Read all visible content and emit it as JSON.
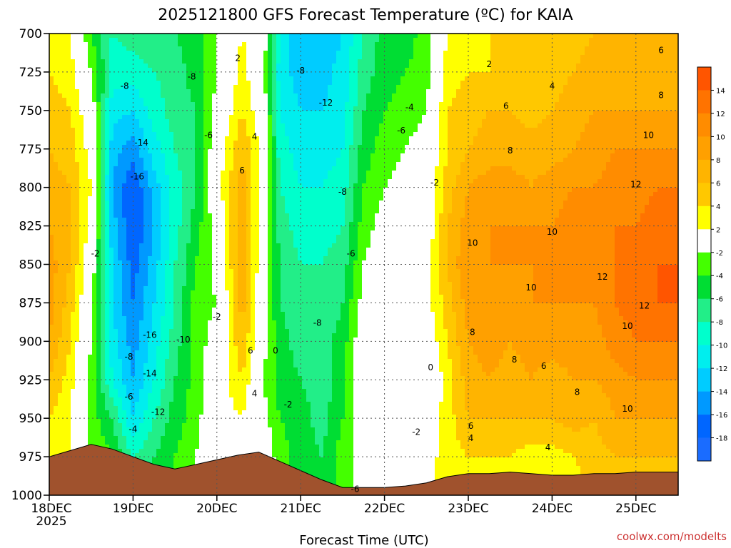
{
  "chart_data": {
    "type": "heatmap",
    "title": "2025121800 GFS Forecast Temperature (ºC) for KAIA",
    "xlabel": "Forecast Time (UTC)",
    "credit": "coolwx.com/modelts",
    "x_ticks": [
      "18DEC",
      "19DEC",
      "20DEC",
      "21DEC",
      "22DEC",
      "23DEC",
      "24DEC",
      "25DEC"
    ],
    "x_year_label": "2025",
    "y_ticks": [
      700,
      725,
      750,
      775,
      800,
      825,
      850,
      875,
      900,
      925,
      950,
      975,
      1000
    ],
    "ylim": [
      1000,
      700
    ],
    "y_unit": "hPa",
    "xlim_days": [
      0,
      7.65
    ],
    "colorbar": {
      "labels": [
        14,
        12,
        10,
        8,
        6,
        4,
        2,
        -2,
        -4,
        -6,
        -8,
        -10,
        -12,
        -14,
        -16,
        -18
      ],
      "colors": [
        "#ff5500",
        "#ff7300",
        "#ff8c00",
        "#ffa000",
        "#ffb400",
        "#ffc800",
        "#ffff00",
        "#ffffff",
        "#44ff00",
        "#00dd33",
        "#22ee88",
        "#00ffcc",
        "#00eeee",
        "#00ccff",
        "#0099ff",
        "#0066ff",
        "#1a6cff"
      ]
    },
    "grid": true,
    "temperature_columns": [
      {
        "day": 0.0,
        "t": [
          3,
          4,
          5,
          6,
          7,
          8,
          9,
          9,
          8,
          6,
          4,
          3,
          2
        ]
      },
      {
        "day": 0.25,
        "t": [
          2,
          3,
          4,
          5,
          6,
          6,
          6,
          5,
          4,
          3,
          2,
          2,
          1
        ]
      },
      {
        "day": 0.5,
        "t": [
          -4,
          -2,
          0,
          1,
          2,
          1,
          0,
          -1,
          -2,
          -3,
          -3,
          -2,
          -1
        ]
      },
      {
        "day": 0.75,
        "t": [
          -8,
          -9,
          -11,
          -13,
          -14,
          -13,
          -12,
          -12,
          -11,
          -10,
          -6,
          -4,
          -3
        ]
      },
      {
        "day": 1.0,
        "t": [
          -7,
          -9,
          -12,
          -15,
          -18,
          -18,
          -17,
          -16,
          -15,
          -14,
          -12,
          -8,
          -6
        ]
      },
      {
        "day": 1.25,
        "t": [
          -6,
          -8,
          -9,
          -11,
          -13,
          -14,
          -13,
          -12,
          -11,
          -10,
          -8,
          -6,
          -4
        ]
      },
      {
        "day": 1.5,
        "t": [
          -6,
          -7,
          -7,
          -8,
          -9,
          -9,
          -8,
          -8,
          -7,
          -6,
          -5,
          -4,
          -3
        ]
      },
      {
        "day": 1.75,
        "t": [
          -5,
          -5,
          -6,
          -6,
          -6,
          -5,
          -4,
          -3,
          -3,
          -3,
          -3,
          -2,
          -2
        ]
      },
      {
        "day": 2.0,
        "t": [
          -2,
          -2,
          -1,
          0,
          1,
          -1,
          -1,
          -2,
          -1,
          0,
          1,
          1,
          1
        ]
      },
      {
        "day": 2.3,
        "t": [
          2,
          3,
          4,
          6,
          7,
          8,
          8,
          7,
          6,
          4,
          2,
          1,
          1
        ]
      },
      {
        "day": 2.55,
        "t": [
          0,
          -1,
          0,
          1,
          1,
          0,
          0,
          -1,
          -1,
          -2,
          -1,
          0,
          0
        ]
      },
      {
        "day": 2.75,
        "t": [
          -10,
          -11,
          -10,
          -9,
          -8,
          -7,
          -6,
          -6,
          -5,
          -5,
          -4,
          -3,
          -3
        ]
      },
      {
        "day": 3.0,
        "t": [
          -14,
          -13,
          -12,
          -11,
          -10,
          -9,
          -8,
          -8,
          -7,
          -6,
          -5,
          -5,
          -6
        ]
      },
      {
        "day": 3.25,
        "t": [
          -14,
          -13,
          -12,
          -11,
          -10,
          -9,
          -8,
          -8,
          -7,
          -7,
          -7,
          -6,
          -6
        ]
      },
      {
        "day": 3.5,
        "t": [
          -12,
          -11,
          -11,
          -10,
          -9,
          -8,
          -7,
          -6,
          -5,
          -5,
          -4,
          -3,
          -3
        ]
      },
      {
        "day": 3.75,
        "t": [
          -8,
          -7,
          -6,
          -5,
          -4,
          -3,
          -2,
          -1,
          0,
          1,
          0,
          -1,
          -1
        ]
      },
      {
        "day": 4.0,
        "t": [
          -5,
          -5,
          -4,
          -3,
          -2,
          -1,
          0,
          1,
          1,
          1,
          0,
          -1,
          -1
        ]
      },
      {
        "day": 4.25,
        "t": [
          -5,
          -4,
          -3,
          -2,
          -1,
          0,
          0,
          1,
          0,
          0,
          -1,
          -1,
          -1
        ]
      },
      {
        "day": 4.5,
        "t": [
          -3,
          -3,
          -2,
          -1,
          0,
          0,
          1,
          1,
          0,
          -1,
          0,
          1,
          1
        ]
      },
      {
        "day": 4.75,
        "t": [
          2,
          3,
          4,
          4,
          5,
          6,
          6,
          5,
          4,
          3,
          3,
          3,
          3
        ]
      },
      {
        "day": 5.0,
        "t": [
          3,
          4,
          5,
          6,
          8,
          9,
          10,
          9,
          8,
          7,
          6,
          4,
          3
        ]
      },
      {
        "day": 5.25,
        "t": [
          4,
          4,
          6,
          7,
          9,
          10,
          10,
          10,
          9,
          8,
          6,
          4,
          3
        ]
      },
      {
        "day": 5.5,
        "t": [
          4,
          5,
          6,
          7,
          9,
          10,
          10,
          9,
          8,
          7,
          6,
          4,
          3
        ]
      },
      {
        "day": 5.75,
        "t": [
          4,
          4,
          5,
          7,
          8,
          10,
          10,
          10,
          9,
          8,
          6,
          3,
          3
        ]
      },
      {
        "day": 6.0,
        "t": [
          5,
          5,
          6,
          7,
          9,
          10,
          10,
          10,
          9,
          7,
          6,
          3,
          3
        ]
      },
      {
        "day": 6.25,
        "t": [
          5,
          6,
          7,
          8,
          10,
          11,
          11,
          10,
          9,
          8,
          7,
          4,
          3
        ]
      },
      {
        "day": 6.5,
        "t": [
          6,
          7,
          8,
          9,
          10,
          11,
          11,
          10,
          9,
          8,
          6,
          5,
          4
        ]
      },
      {
        "day": 6.75,
        "t": [
          6,
          7,
          8,
          10,
          11,
          12,
          12,
          12,
          11,
          9,
          8,
          6,
          4
        ]
      },
      {
        "day": 7.0,
        "t": [
          6,
          7,
          8,
          10,
          11,
          12,
          13,
          13,
          12,
          10,
          8,
          6,
          4
        ]
      },
      {
        "day": 7.25,
        "t": [
          6,
          7,
          8,
          10,
          12,
          13,
          14,
          14,
          12,
          10,
          8,
          6,
          5
        ]
      },
      {
        "day": 7.5,
        "t": [
          6,
          7,
          8,
          10,
          12,
          13,
          14,
          14,
          12,
          10,
          8,
          6,
          5
        ]
      },
      {
        "day": 7.65,
        "t": [
          6,
          7,
          8,
          10,
          12,
          13,
          14,
          14,
          12,
          10,
          8,
          6,
          5
        ]
      }
    ],
    "surface_pressure": [
      {
        "day": 0.0,
        "p": 975
      },
      {
        "day": 0.25,
        "p": 971
      },
      {
        "day": 0.5,
        "p": 967
      },
      {
        "day": 0.75,
        "p": 970
      },
      {
        "day": 1.0,
        "p": 975
      },
      {
        "day": 1.25,
        "p": 980
      },
      {
        "day": 1.5,
        "p": 983
      },
      {
        "day": 1.75,
        "p": 980
      },
      {
        "day": 2.0,
        "p": 977
      },
      {
        "day": 2.25,
        "p": 974
      },
      {
        "day": 2.5,
        "p": 972
      },
      {
        "day": 2.75,
        "p": 978
      },
      {
        "day": 3.0,
        "p": 984
      },
      {
        "day": 3.25,
        "p": 990
      },
      {
        "day": 3.5,
        "p": 995
      },
      {
        "day": 3.75,
        "p": 995
      },
      {
        "day": 4.0,
        "p": 995
      },
      {
        "day": 4.25,
        "p": 994
      },
      {
        "day": 4.5,
        "p": 992
      },
      {
        "day": 4.75,
        "p": 988
      },
      {
        "day": 5.0,
        "p": 986
      },
      {
        "day": 5.25,
        "p": 986
      },
      {
        "day": 5.5,
        "p": 985
      },
      {
        "day": 5.75,
        "p": 986
      },
      {
        "day": 6.0,
        "p": 987
      },
      {
        "day": 6.25,
        "p": 987
      },
      {
        "day": 6.5,
        "p": 986
      },
      {
        "day": 6.75,
        "p": 986
      },
      {
        "day": 7.0,
        "p": 985
      },
      {
        "day": 7.25,
        "p": 985
      },
      {
        "day": 7.5,
        "p": 985
      },
      {
        "day": 7.65,
        "p": 985
      }
    ],
    "contour_labels": [
      {
        "text": "2",
        "day": 2.25,
        "p": 716
      },
      {
        "text": "-8",
        "day": 0.9,
        "p": 734
      },
      {
        "text": "-8",
        "day": 1.7,
        "p": 728
      },
      {
        "text": "-8",
        "day": 3.0,
        "p": 724
      },
      {
        "text": "-12",
        "day": 3.3,
        "p": 745
      },
      {
        "text": "-4",
        "day": 4.3,
        "p": 748
      },
      {
        "text": "-6",
        "day": 4.2,
        "p": 763
      },
      {
        "text": "2",
        "day": 5.25,
        "p": 720
      },
      {
        "text": "4",
        "day": 6.0,
        "p": 734
      },
      {
        "text": "6",
        "day": 7.3,
        "p": 711
      },
      {
        "text": "6",
        "day": 5.45,
        "p": 747
      },
      {
        "text": "8",
        "day": 7.3,
        "p": 740
      },
      {
        "text": "-14",
        "day": 1.1,
        "p": 771
      },
      {
        "text": "-6",
        "day": 1.9,
        "p": 766
      },
      {
        "text": "4",
        "day": 2.45,
        "p": 767
      },
      {
        "text": "10",
        "day": 7.15,
        "p": 766
      },
      {
        "text": "8",
        "day": 5.5,
        "p": 776
      },
      {
        "text": "-16",
        "day": 1.05,
        "p": 793
      },
      {
        "text": "6",
        "day": 2.3,
        "p": 789
      },
      {
        "text": "-2",
        "day": 4.6,
        "p": 797
      },
      {
        "text": "12",
        "day": 7.0,
        "p": 798
      },
      {
        "text": "-8",
        "day": 3.5,
        "p": 803
      },
      {
        "text": "10",
        "day": 6.0,
        "p": 829
      },
      {
        "text": "10",
        "day": 5.05,
        "p": 836
      },
      {
        "text": "-2",
        "day": 0.55,
        "p": 843
      },
      {
        "text": "-6",
        "day": 3.6,
        "p": 843
      },
      {
        "text": "10",
        "day": 5.75,
        "p": 865
      },
      {
        "text": "12",
        "day": 6.6,
        "p": 858
      },
      {
        "text": "-2",
        "day": 2.0,
        "p": 884
      },
      {
        "text": "-8",
        "day": 3.2,
        "p": 888
      },
      {
        "text": "12",
        "day": 7.1,
        "p": 877
      },
      {
        "text": "10",
        "day": 6.9,
        "p": 890
      },
      {
        "text": "8",
        "day": 5.05,
        "p": 894
      },
      {
        "text": "-16",
        "day": 1.2,
        "p": 896
      },
      {
        "text": "-10",
        "day": 1.6,
        "p": 899
      },
      {
        "text": "-8",
        "day": 0.95,
        "p": 910
      },
      {
        "text": "6",
        "day": 2.4,
        "p": 906
      },
      {
        "text": "0",
        "day": 2.7,
        "p": 906
      },
      {
        "text": "8",
        "day": 5.55,
        "p": 912
      },
      {
        "text": "6",
        "day": 5.9,
        "p": 916
      },
      {
        "text": "-14",
        "day": 1.2,
        "p": 921
      },
      {
        "text": "0",
        "day": 4.55,
        "p": 917
      },
      {
        "text": "-6",
        "day": 0.95,
        "p": 936
      },
      {
        "text": "4",
        "day": 2.45,
        "p": 934
      },
      {
        "text": "-2",
        "day": 2.85,
        "p": 941
      },
      {
        "text": "8",
        "day": 6.3,
        "p": 933
      },
      {
        "text": "10",
        "day": 6.9,
        "p": 944
      },
      {
        "text": "-12",
        "day": 1.3,
        "p": 946
      },
      {
        "text": "6",
        "day": 5.03,
        "p": 955
      },
      {
        "text": "-4",
        "day": 1.0,
        "p": 957
      },
      {
        "text": "4",
        "day": 5.03,
        "p": 963
      },
      {
        "text": "-2",
        "day": 4.38,
        "p": 959
      },
      {
        "text": "4",
        "day": 5.95,
        "p": 969
      },
      {
        "text": "-6",
        "day": 3.65,
        "p": 996
      }
    ]
  }
}
